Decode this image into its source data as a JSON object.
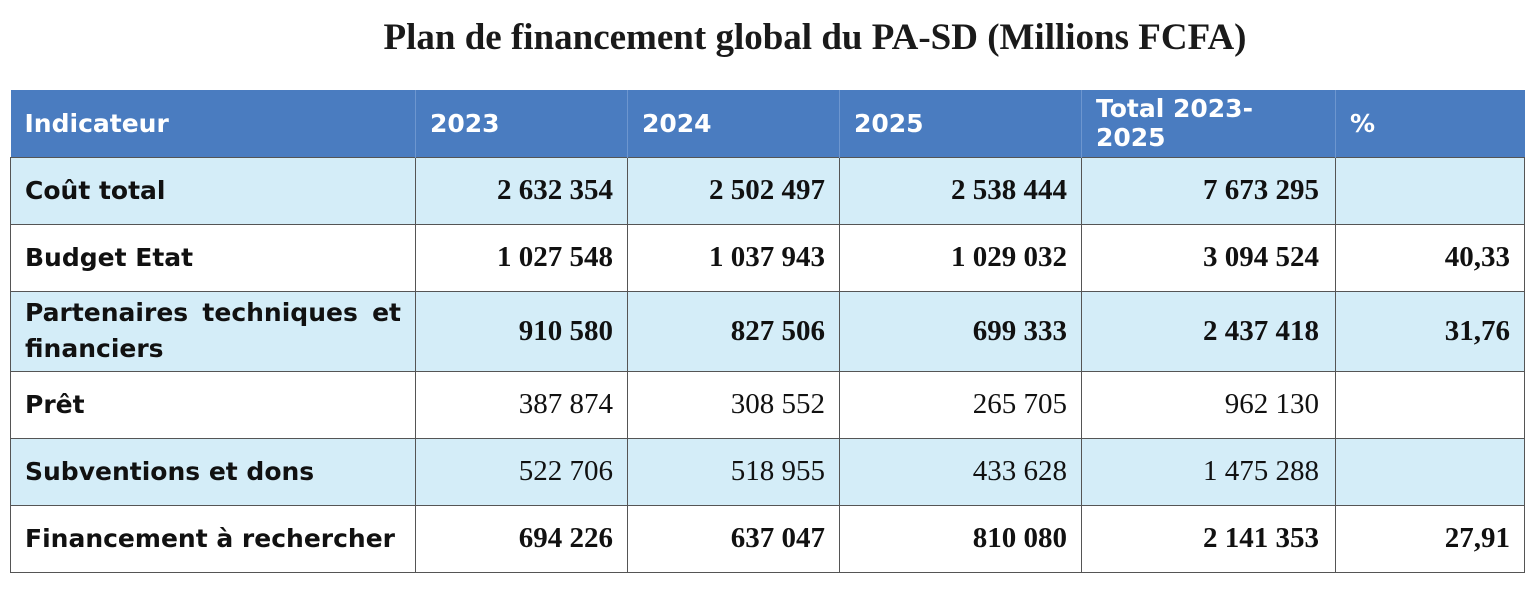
{
  "title": "Plan de financement global du PA-SD (Millions FCFA)",
  "table": {
    "headers": [
      "Indicateur",
      "2023",
      "2024",
      "2025",
      "Total 2023-2025",
      "%"
    ],
    "rows": [
      {
        "label": "Coût total",
        "v2023": "2 632 354",
        "v2024": "2 502 497",
        "v2025": "2 538 444",
        "total": "7 673 295",
        "pct": ""
      },
      {
        "label": "Budget Etat",
        "v2023": "1 027 548",
        "v2024": "1 037 943",
        "v2025": "1 029 032",
        "total": "3 094 524",
        "pct": "40,33"
      },
      {
        "label": "Partenaires techniques et financiers",
        "v2023": "910 580",
        "v2024": "827 506",
        "v2025": "699 333",
        "total": "2 437 418",
        "pct": "31,76"
      },
      {
        "label": "Prêt",
        "v2023": "387 874",
        "v2024": "308 552",
        "v2025": "265 705",
        "total": "962 130",
        "pct": ""
      },
      {
        "label": "Subventions et dons",
        "v2023": "522 706",
        "v2024": "518 955",
        "v2025": "433 628",
        "total": "1 475 288",
        "pct": ""
      },
      {
        "label": "Financement à rechercher",
        "v2023": "694 226",
        "v2024": "637 047",
        "v2025": "810 080",
        "total": "2 141 353",
        "pct": "27,91"
      }
    ]
  },
  "colors": {
    "header_bg": "#4a7cc0",
    "row_shade": "#d4edf8",
    "border": "#555555"
  }
}
